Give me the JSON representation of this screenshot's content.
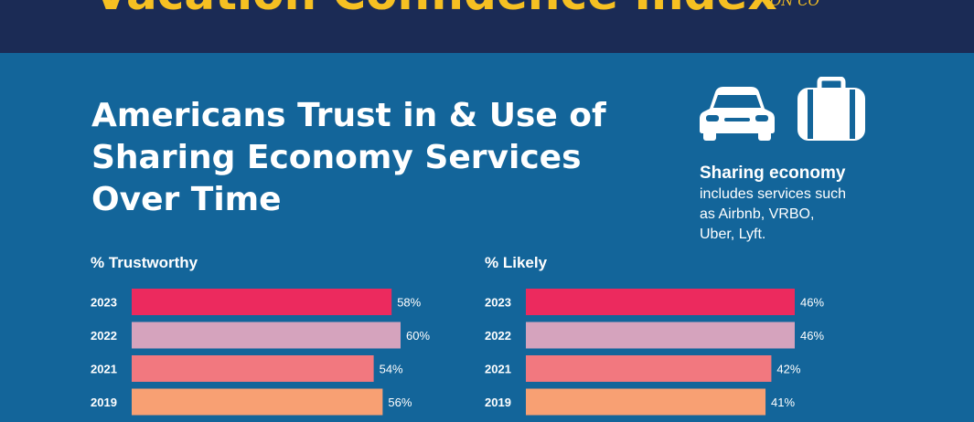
{
  "banner": {
    "title": "Vacation Confidence Index",
    "mark": "ON CO"
  },
  "heading": {
    "lines": [
      "Americans Trust in & Use of",
      "Sharing Economy Services",
      "Over Time"
    ]
  },
  "icons": [
    "car-icon",
    "suitcase-icon"
  ],
  "note": {
    "title": "Sharing economy",
    "lines": [
      "includes services such",
      "as Airbnb, VRBO,",
      "Uber, Lyft."
    ]
  },
  "colors": {
    "background": "#13659a",
    "banner": "#1b2b55",
    "accent": "#f6c022",
    "bar_2023": "#ec2a5e",
    "bar_2022": "#d5a3bd",
    "bar_2021": "#f2787f",
    "bar_2019": "#f8a073"
  },
  "chart_data": [
    {
      "type": "bar",
      "orientation": "horizontal",
      "title": "% Trustworthy",
      "categories": [
        "2023",
        "2022",
        "2021",
        "2019"
      ],
      "values": [
        58,
        60,
        54,
        56
      ],
      "value_labels": [
        "58%",
        "60%",
        "54%",
        "56%"
      ],
      "xlim": [
        0,
        60
      ]
    },
    {
      "type": "bar",
      "orientation": "horizontal",
      "title": "% Likely",
      "categories": [
        "2023",
        "2022",
        "2021",
        "2019"
      ],
      "values": [
        46,
        46,
        42,
        41
      ],
      "value_labels": [
        "46%",
        "46%",
        "42%",
        "41%"
      ],
      "xlim": [
        0,
        46
      ]
    }
  ]
}
